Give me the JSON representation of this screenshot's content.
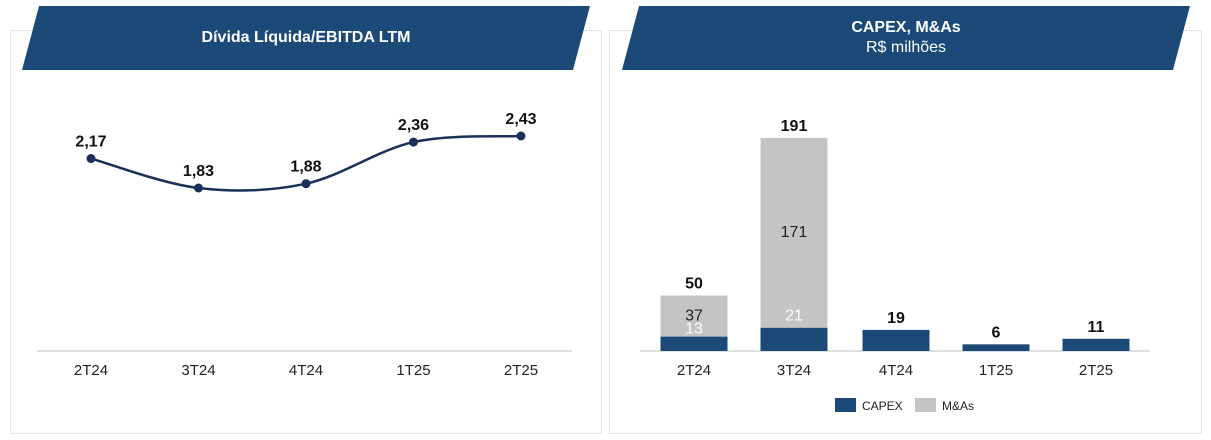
{
  "colors": {
    "banner": "#1b4a78",
    "line": "#1a2f5a",
    "capex": "#1b4a78",
    "mas": "#c4c4c4",
    "axis": "#bfbfbf"
  },
  "left_panel": {
    "title": "Dívida Líquida/EBITDA LTM"
  },
  "right_panel": {
    "title": "CAPEX, M&As",
    "subtitle": "R$ milhões"
  },
  "chart_data": [
    {
      "type": "line",
      "title": "Dívida Líquida/EBITDA LTM",
      "categories": [
        "2T24",
        "3T24",
        "4T24",
        "1T25",
        "2T25"
      ],
      "values": [
        2.17,
        1.83,
        1.88,
        2.36,
        2.43
      ],
      "value_labels": [
        "2,17",
        "1,83",
        "1,88",
        "2,36",
        "2,43"
      ],
      "grid": false
    },
    {
      "type": "bar",
      "stacked": true,
      "title": "CAPEX, M&As",
      "subtitle": "R$ milhões",
      "categories": [
        "2T24",
        "3T24",
        "4T24",
        "1T25",
        "2T25"
      ],
      "series": [
        {
          "name": "CAPEX",
          "values": [
            13,
            21,
            19,
            6,
            11
          ]
        },
        {
          "name": "M&As",
          "values": [
            37,
            171,
            0,
            0,
            0
          ]
        }
      ],
      "totals": [
        50,
        191,
        19,
        6,
        11
      ],
      "legend": "bottom",
      "grid": false
    }
  ]
}
